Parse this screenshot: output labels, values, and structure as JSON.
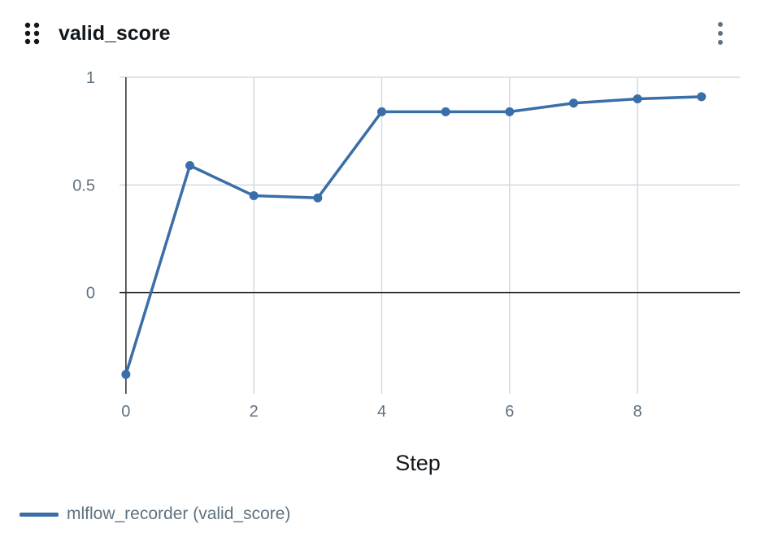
{
  "panel": {
    "title": "valid_score",
    "drag_icon": "drag-grip-icon",
    "menu_icon": "kebab-menu-icon"
  },
  "colors": {
    "series": "#3a6ea8",
    "grid": "#d3dae2",
    "zero_line": "#2b2b2b",
    "tick_text": "#5f7281"
  },
  "chart_data": {
    "type": "line",
    "xlabel": "Step",
    "ylabel": "",
    "xlim": [
      -0.1,
      9.6
    ],
    "ylim": [
      -0.47,
      1.0
    ],
    "xticks": [
      0,
      2,
      4,
      6,
      8
    ],
    "xtick_labels": [
      "0",
      "2",
      "4",
      "6",
      "8"
    ],
    "yticks": [
      1,
      0.5,
      0
    ],
    "ytick_labels": [
      "1",
      "0.5",
      "0"
    ],
    "grid": true,
    "legend_position": "bottom-left",
    "series": [
      {
        "name": "mlflow_recorder (valid_score)",
        "color": "#3a6ea8",
        "markers": true,
        "x": [
          0,
          1,
          2,
          3,
          4,
          5,
          6,
          7,
          8,
          9
        ],
        "y": [
          -0.38,
          0.59,
          0.45,
          0.44,
          0.84,
          0.84,
          0.84,
          0.88,
          0.9,
          0.91
        ]
      }
    ]
  }
}
